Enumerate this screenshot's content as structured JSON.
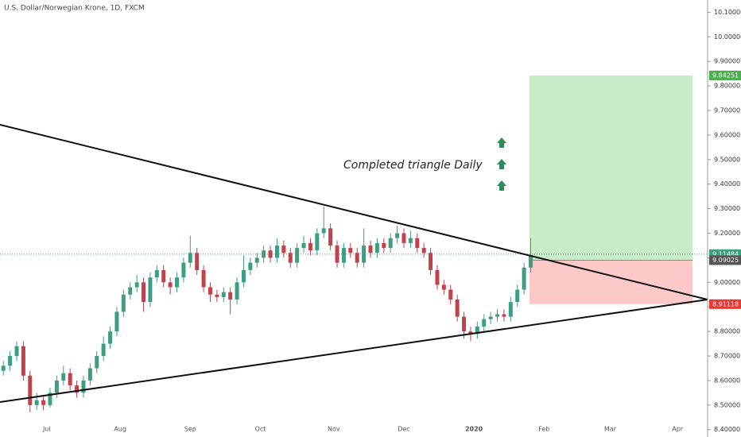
{
  "chart_data": {
    "type": "candlestick",
    "title": "U.S. Dollar/Norwegian Krone, 1D, FXCM",
    "annotation": "Completed triangle Daily",
    "color_up": "#3d9e82",
    "color_down": "#c0434c",
    "ylim": [
      8.37,
      10.15
    ],
    "yticks": [
      {
        "value": 8.4,
        "label": "8.40000"
      },
      {
        "value": 8.5,
        "label": "8.50000"
      },
      {
        "value": 8.6,
        "label": "8.60000"
      },
      {
        "value": 8.7,
        "label": "8.70000"
      },
      {
        "value": 8.8,
        "label": "8.80000"
      },
      {
        "value": 8.9,
        "label": "8.90000"
      },
      {
        "value": 9.0,
        "label": "9.00000"
      },
      {
        "value": 9.1,
        "label": "9.10000"
      },
      {
        "value": 9.2,
        "label": "9.20000"
      },
      {
        "value": 9.3,
        "label": "9.30000"
      },
      {
        "value": 9.4,
        "label": "9.40000"
      },
      {
        "value": 9.5,
        "label": "9.50000"
      },
      {
        "value": 9.6,
        "label": "9.60000"
      },
      {
        "value": 9.7,
        "label": "9.70000"
      },
      {
        "value": 9.8,
        "label": "9.80000"
      },
      {
        "value": 9.9,
        "label": "9.90000"
      },
      {
        "value": 10.0,
        "label": "10.00000"
      },
      {
        "value": 10.1,
        "label": "10.10000"
      }
    ],
    "xlim": [
      -0.5,
      105.5
    ],
    "xticks": [
      {
        "value": 6.5,
        "label": "Jul"
      },
      {
        "value": 17.5,
        "label": "Aug"
      },
      {
        "value": 28,
        "label": "Sep"
      },
      {
        "value": 38.5,
        "label": "Oct"
      },
      {
        "value": 49.5,
        "label": "Nov"
      },
      {
        "value": 60,
        "label": "Dec"
      },
      {
        "value": 70.5,
        "label": "2020"
      },
      {
        "value": 81,
        "label": "Feb"
      },
      {
        "value": 90.9,
        "label": "Mar"
      },
      {
        "value": 101,
        "label": "Apr"
      }
    ],
    "last_price": 9.11484,
    "position": {
      "target": 9.84251,
      "entry": 9.09025,
      "stop": 8.91118
    },
    "series": [
      {
        "values": [
          [
            8.64,
            8.68,
            8.62,
            8.66
          ],
          [
            8.66,
            8.72,
            8.64,
            8.7
          ],
          [
            8.7,
            8.76,
            8.68,
            8.74
          ],
          [
            8.74,
            8.76,
            8.6,
            8.62
          ],
          [
            8.62,
            8.64,
            8.47,
            8.5
          ],
          [
            8.5,
            8.55,
            8.48,
            8.52
          ],
          [
            8.52,
            8.54,
            8.48,
            8.5
          ],
          [
            8.5,
            8.57,
            8.49,
            8.55
          ],
          [
            8.55,
            8.62,
            8.53,
            8.6
          ],
          [
            8.6,
            8.66,
            8.58,
            8.63
          ],
          [
            8.63,
            8.65,
            8.56,
            8.58
          ],
          [
            8.58,
            8.6,
            8.53,
            8.55
          ],
          [
            8.55,
            8.62,
            8.53,
            8.6
          ],
          [
            8.6,
            8.67,
            8.58,
            8.65
          ],
          [
            8.65,
            8.72,
            8.63,
            8.7
          ],
          [
            8.7,
            8.78,
            8.68,
            8.75
          ],
          [
            8.75,
            8.82,
            8.73,
            8.8
          ],
          [
            8.8,
            8.9,
            8.78,
            8.88
          ],
          [
            8.88,
            8.97,
            8.86,
            8.95
          ],
          [
            8.95,
            9.0,
            8.93,
            8.98
          ],
          [
            8.98,
            9.03,
            8.96,
            9.0
          ],
          [
            9.0,
            9.02,
            8.88,
            8.92
          ],
          [
            8.92,
            9.04,
            8.9,
            9.02
          ],
          [
            9.02,
            9.07,
            9.0,
            9.05
          ],
          [
            9.05,
            9.07,
            8.98,
            9.0
          ],
          [
            9.0,
            9.02,
            8.95,
            8.98
          ],
          [
            8.98,
            9.04,
            8.96,
            9.02
          ],
          [
            9.02,
            9.1,
            9.0,
            9.08
          ],
          [
            9.08,
            9.19,
            9.06,
            9.12
          ],
          [
            9.12,
            9.14,
            9.03,
            9.05
          ],
          [
            9.05,
            9.07,
            8.96,
            8.98
          ],
          [
            8.98,
            9.0,
            8.92,
            8.95
          ],
          [
            8.95,
            8.97,
            8.92,
            8.94
          ],
          [
            8.94,
            8.98,
            8.92,
            8.96
          ],
          [
            8.96,
            8.98,
            8.87,
            8.93
          ],
          [
            8.93,
            9.02,
            8.91,
            9.0
          ],
          [
            9.0,
            9.11,
            8.98,
            9.05
          ],
          [
            9.05,
            9.1,
            9.03,
            9.08
          ],
          [
            9.08,
            9.12,
            9.06,
            9.1
          ],
          [
            9.1,
            9.15,
            9.08,
            9.13
          ],
          [
            9.13,
            9.15,
            9.08,
            9.1
          ],
          [
            9.1,
            9.18,
            9.08,
            9.15
          ],
          [
            9.15,
            9.17,
            9.1,
            9.12
          ],
          [
            9.12,
            9.14,
            9.06,
            9.08
          ],
          [
            9.08,
            9.16,
            9.06,
            9.14
          ],
          [
            9.14,
            9.19,
            9.12,
            9.16
          ],
          [
            9.16,
            9.18,
            9.11,
            9.13
          ],
          [
            9.13,
            9.22,
            9.11,
            9.2
          ],
          [
            9.2,
            9.31,
            9.18,
            9.22
          ],
          [
            9.22,
            9.24,
            9.13,
            9.15
          ],
          [
            9.15,
            9.17,
            9.06,
            9.08
          ],
          [
            9.08,
            9.16,
            9.06,
            9.14
          ],
          [
            9.14,
            9.16,
            9.1,
            9.12
          ],
          [
            9.12,
            9.14,
            9.06,
            9.08
          ],
          [
            9.08,
            9.22,
            9.06,
            9.15
          ],
          [
            9.15,
            9.17,
            9.1,
            9.12
          ],
          [
            9.12,
            9.18,
            9.1,
            9.16
          ],
          [
            9.16,
            9.18,
            9.12,
            9.14
          ],
          [
            9.14,
            9.2,
            9.12,
            9.18
          ],
          [
            9.18,
            9.23,
            9.16,
            9.2
          ],
          [
            9.2,
            9.22,
            9.14,
            9.16
          ],
          [
            9.16,
            9.21,
            9.14,
            9.18
          ],
          [
            9.18,
            9.2,
            9.12,
            9.14
          ],
          [
            9.14,
            9.16,
            9.1,
            9.12
          ],
          [
            9.12,
            9.14,
            9.03,
            9.05
          ],
          [
            9.05,
            9.07,
            8.97,
            8.99
          ],
          [
            8.99,
            9.01,
            8.95,
            8.97
          ],
          [
            8.97,
            8.99,
            8.91,
            8.93
          ],
          [
            8.93,
            8.95,
            8.84,
            8.86
          ],
          [
            8.86,
            8.88,
            8.77,
            8.8
          ],
          [
            8.8,
            8.82,
            8.76,
            8.79
          ],
          [
            8.79,
            8.84,
            8.77,
            8.82
          ],
          [
            8.82,
            8.87,
            8.8,
            8.85
          ],
          [
            8.85,
            8.88,
            8.83,
            8.86
          ],
          [
            8.86,
            8.89,
            8.84,
            8.87
          ],
          [
            8.87,
            8.89,
            8.84,
            8.86
          ],
          [
            8.86,
            8.94,
            8.84,
            8.92
          ],
          [
            8.92,
            8.99,
            8.9,
            8.97
          ],
          [
            8.97,
            9.08,
            8.95,
            9.06
          ],
          [
            9.06,
            9.18,
            9.04,
            9.11
          ]
        ]
      }
    ]
  }
}
